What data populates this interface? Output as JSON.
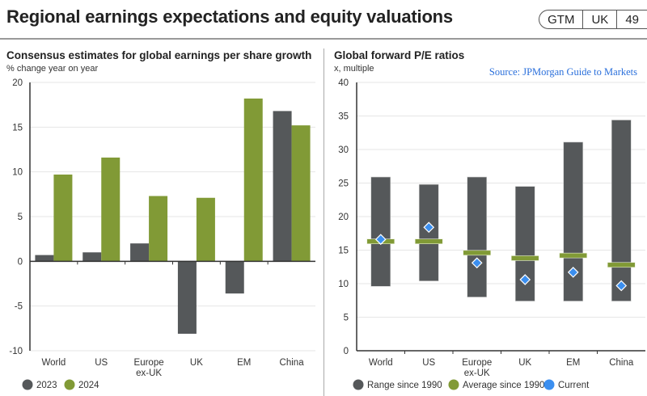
{
  "header": {
    "title": "Regional earnings expectations and equity valuations",
    "badge": [
      "GTM",
      "UK",
      "49"
    ]
  },
  "source": "Source: JPMorgan Guide to Markets",
  "colors": {
    "dark": "#55585a",
    "green": "#819a36",
    "blue": "#3b8ff0"
  },
  "chart_data": [
    {
      "type": "bar",
      "title": "Consensus estimates for global earnings per share growth",
      "subtitle": "% change year on year",
      "xlabel": "",
      "ylabel": "",
      "categories": [
        "World",
        "US",
        "Europe\nex-UK",
        "UK",
        "EM",
        "China"
      ],
      "series": [
        {
          "name": "2023",
          "values": [
            0.7,
            1.0,
            2.0,
            -8.1,
            -3.6,
            16.8
          ]
        },
        {
          "name": "2024",
          "values": [
            9.7,
            11.6,
            7.3,
            7.1,
            18.2,
            15.2
          ]
        }
      ],
      "ylim": [
        -10,
        20
      ],
      "yticks": [
        20,
        15,
        10,
        5,
        0,
        -5,
        -10
      ],
      "grid": true,
      "legend": "bottom-left"
    },
    {
      "type": "bar",
      "title": "Global forward P/E ratios",
      "subtitle": "x, multiple",
      "xlabel": "",
      "ylabel": "",
      "categories": [
        "World",
        "US",
        "Europe\nex-UK",
        "UK",
        "EM",
        "China"
      ],
      "range": {
        "name": "Range since 1990",
        "low": [
          9.6,
          10.4,
          8.0,
          7.4,
          7.4,
          7.4
        ],
        "high": [
          25.9,
          24.8,
          25.9,
          24.5,
          31.1,
          34.4
        ]
      },
      "average": {
        "name": "Average since 1990",
        "values": [
          16.3,
          16.3,
          14.6,
          13.8,
          14.2,
          12.8
        ]
      },
      "current": {
        "name": "Current",
        "values": [
          16.6,
          18.4,
          13.1,
          10.6,
          11.7,
          9.7
        ]
      },
      "ylim": [
        0,
        40
      ],
      "yticks": [
        40,
        35,
        30,
        25,
        20,
        15,
        10,
        5,
        0
      ],
      "grid": true,
      "legend": "bottom-left"
    }
  ]
}
